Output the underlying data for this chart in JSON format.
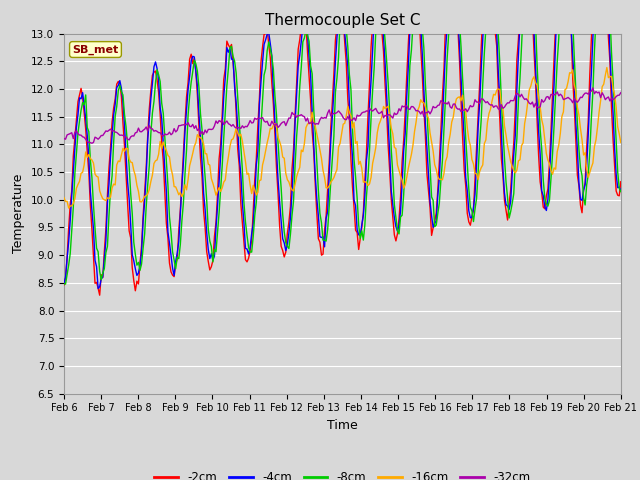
{
  "title": "Thermocouple Set C",
  "xlabel": "Time",
  "ylabel": "Temperature",
  "ylim": [
    6.5,
    13.0
  ],
  "yticks": [
    6.5,
    7.0,
    7.5,
    8.0,
    8.5,
    9.0,
    9.5,
    10.0,
    10.5,
    11.0,
    11.5,
    12.0,
    12.5,
    13.0
  ],
  "xtick_labels": [
    "Feb 6",
    "Feb 7",
    "Feb 8",
    "Feb 9",
    "Feb 10",
    "Feb 11",
    "Feb 12",
    "Feb 13",
    "Feb 14",
    "Feb 15",
    "Feb 16",
    "Feb 17",
    "Feb 18",
    "Feb 19",
    "Feb 20",
    "Feb 21"
  ],
  "colors": {
    "-2cm": "#ff0000",
    "-4cm": "#0000ff",
    "-8cm": "#00cc00",
    "-16cm": "#ffaa00",
    "-32cm": "#aa00aa"
  },
  "legend_label": "SB_met",
  "background_color": "#d8d8d8",
  "plot_bg_color": "#d8d8d8",
  "grid_color": "#ffffff",
  "title_fontsize": 11,
  "figsize": [
    6.4,
    4.8
  ],
  "dpi": 100
}
